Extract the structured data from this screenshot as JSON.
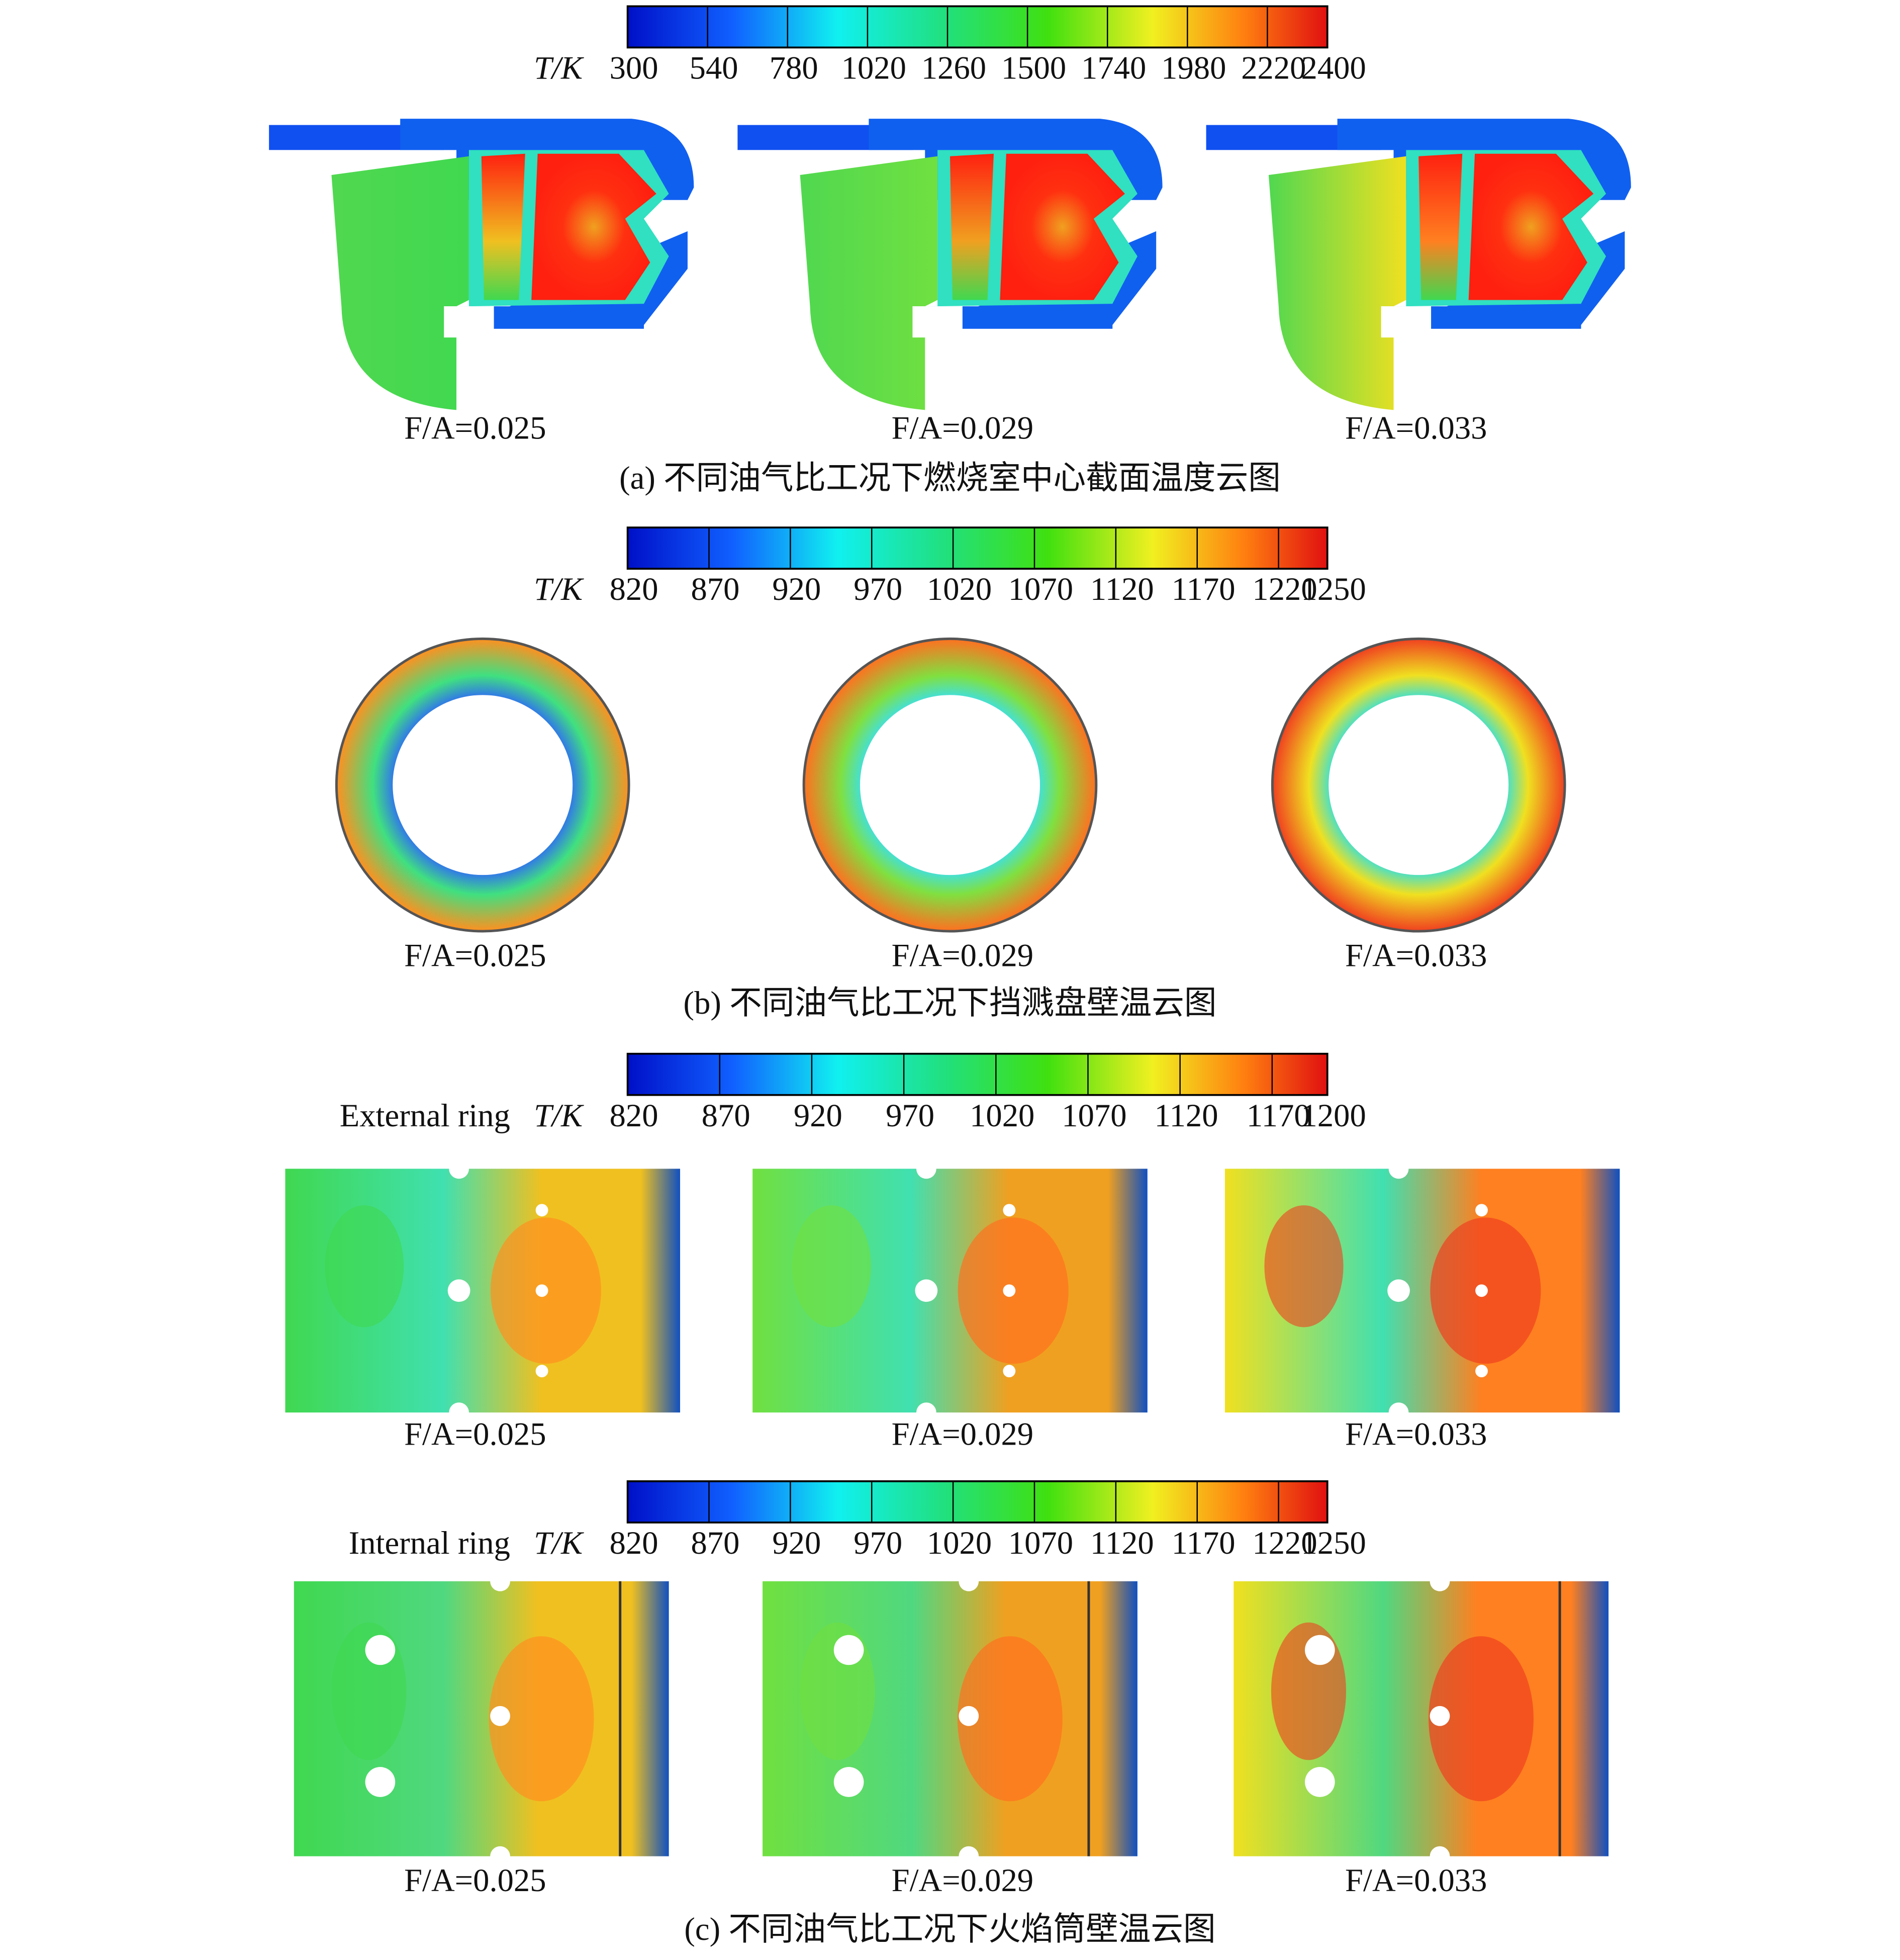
{
  "rows": [
    {
      "colorbar": {
        "label": "T/K",
        "ticks": [
          300,
          540,
          780,
          1020,
          1260,
          1500,
          1740,
          1980,
          2220,
          2400
        ]
      },
      "labels": [
        "F/A=0.025",
        "F/A=0.029",
        "F/A=0.033"
      ],
      "caption": "(a) 不同油气比工况下燃烧室中心截面温度云图"
    },
    {
      "colorbar": {
        "label": "T/K",
        "ticks": [
          820,
          870,
          920,
          970,
          1020,
          1070,
          1120,
          1170,
          1220,
          1250
        ]
      },
      "labels": [
        "F/A=0.025",
        "F/A=0.029",
        "F/A=0.033"
      ],
      "caption": "(b) 不同油气比工况下挡溅盘壁温云图"
    },
    {
      "ring": "External ring",
      "colorbar": {
        "label": "T/K",
        "ticks": [
          820,
          870,
          920,
          970,
          1020,
          1070,
          1120,
          1170,
          1200
        ]
      },
      "labels": [
        "F/A=0.025",
        "F/A=0.029",
        "F/A=0.033"
      ]
    },
    {
      "ring": "Internal ring",
      "colorbar": {
        "label": "T/K",
        "ticks": [
          820,
          870,
          920,
          970,
          1020,
          1070,
          1120,
          1170,
          1220,
          1250
        ]
      },
      "labels": [
        "F/A=0.025",
        "F/A=0.029",
        "F/A=0.033"
      ],
      "caption": "(c) 不同油气比工况下火焰筒壁温云图"
    }
  ]
}
